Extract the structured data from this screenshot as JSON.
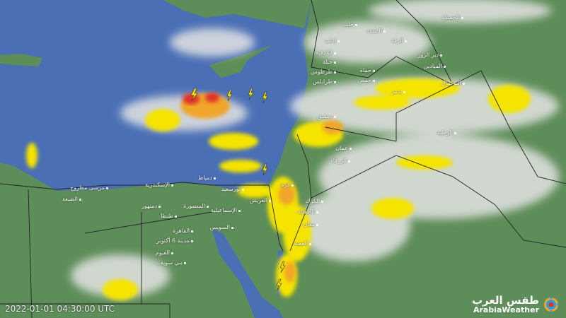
{
  "timestamp": "2022-01-01 04:30:00 UTC",
  "logo": {
    "arabic": "طقس العرب",
    "english": "ArabiaWeather"
  },
  "colors": {
    "sea": "#4a6fb5",
    "land": "#5d8d58",
    "cloud": "#e6e6e6",
    "rain_light": "#f4e400",
    "rain_moderate": "#f1a52a",
    "rain_heavy": "#e0302a"
  },
  "cities": [
    {
      "name": "مرسى مطروح"
    },
    {
      "name": "الضبعة"
    },
    {
      "name": "الإسكندرية"
    },
    {
      "name": "دمنهور"
    },
    {
      "name": "طنطا"
    },
    {
      "name": "المنصورة"
    },
    {
      "name": "دمياط"
    },
    {
      "name": "بورسعيد"
    },
    {
      "name": "الإسماعيلية"
    },
    {
      "name": "السويس"
    },
    {
      "name": "القاهرة"
    },
    {
      "name": "مدينة 6 أكتوبر"
    },
    {
      "name": "الفيوم"
    },
    {
      "name": "بني سويف"
    },
    {
      "name": "العريش"
    },
    {
      "name": "غزة"
    },
    {
      "name": "الكرك"
    },
    {
      "name": "الطفيلة"
    },
    {
      "name": "معان"
    },
    {
      "name": "العقبة"
    },
    {
      "name": "حلب"
    },
    {
      "name": "إدلب"
    },
    {
      "name": "اللاذقية"
    },
    {
      "name": "جبلة"
    },
    {
      "name": "حماة"
    },
    {
      "name": "حمص"
    },
    {
      "name": "طرطوس"
    },
    {
      "name": "طرابلس"
    },
    {
      "name": "تدمر"
    },
    {
      "name": "الرقة"
    },
    {
      "name": "الطبقة"
    },
    {
      "name": "دير الزور"
    },
    {
      "name": "الميادين"
    },
    {
      "name": "الحسكة"
    },
    {
      "name": "البوكمال"
    },
    {
      "name": "دمشق"
    },
    {
      "name": "عمان"
    },
    {
      "name": "الزرقاء"
    },
    {
      "name": "الرطبة"
    }
  ]
}
